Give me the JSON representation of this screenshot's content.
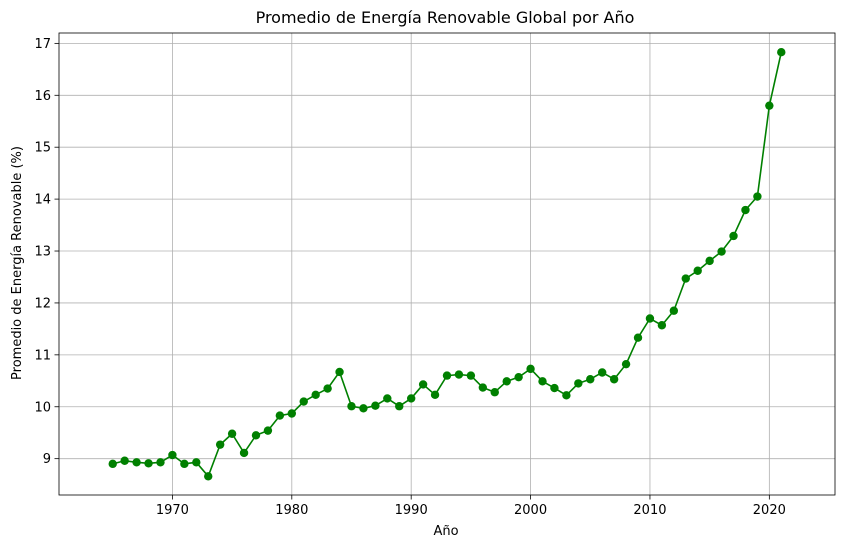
{
  "chart_data": {
    "type": "line",
    "title": "Promedio de Energía Renovable Global por Año",
    "xlabel": "Año",
    "ylabel": "Promedio de Energía Renovable (%)",
    "xlim": [
      1960.5,
      2025.5
    ],
    "ylim": [
      8.3,
      17.2
    ],
    "xticks": [
      1970,
      1980,
      1990,
      2000,
      2010,
      2020
    ],
    "yticks": [
      9,
      10,
      11,
      12,
      13,
      14,
      15,
      16,
      17
    ],
    "grid": true,
    "color": "#008000",
    "marker": "circle",
    "series": [
      {
        "x": [
          1965,
          1966,
          1967,
          1968,
          1969,
          1970,
          1971,
          1972,
          1973,
          1974,
          1975,
          1976,
          1977,
          1978,
          1979,
          1980,
          1981,
          1982,
          1983,
          1984,
          1985,
          1986,
          1987,
          1988,
          1989,
          1990,
          1991,
          1992,
          1993,
          1994,
          1995,
          1996,
          1997,
          1998,
          1999,
          2000,
          2001,
          2002,
          2003,
          2004,
          2005,
          2006,
          2007,
          2008,
          2009,
          2010,
          2011,
          2012,
          2013,
          2014,
          2015,
          2016,
          2017,
          2018,
          2019,
          2020,
          2021
        ],
        "y": [
          8.9,
          8.96,
          8.93,
          8.91,
          8.93,
          9.07,
          8.9,
          8.93,
          8.66,
          9.27,
          9.48,
          9.11,
          9.45,
          9.54,
          9.83,
          9.87,
          10.1,
          10.23,
          10.35,
          10.67,
          10.01,
          9.97,
          10.02,
          10.16,
          10.01,
          10.16,
          10.43,
          10.23,
          10.6,
          10.62,
          10.6,
          10.37,
          10.28,
          10.49,
          10.57,
          10.73,
          10.49,
          10.36,
          10.22,
          10.45,
          10.53,
          10.66,
          10.53,
          10.82,
          11.33,
          11.7,
          11.57,
          11.85,
          12.47,
          12.62,
          12.81,
          12.99,
          13.29,
          13.79,
          14.05,
          15.8,
          16.83
        ]
      }
    ]
  }
}
